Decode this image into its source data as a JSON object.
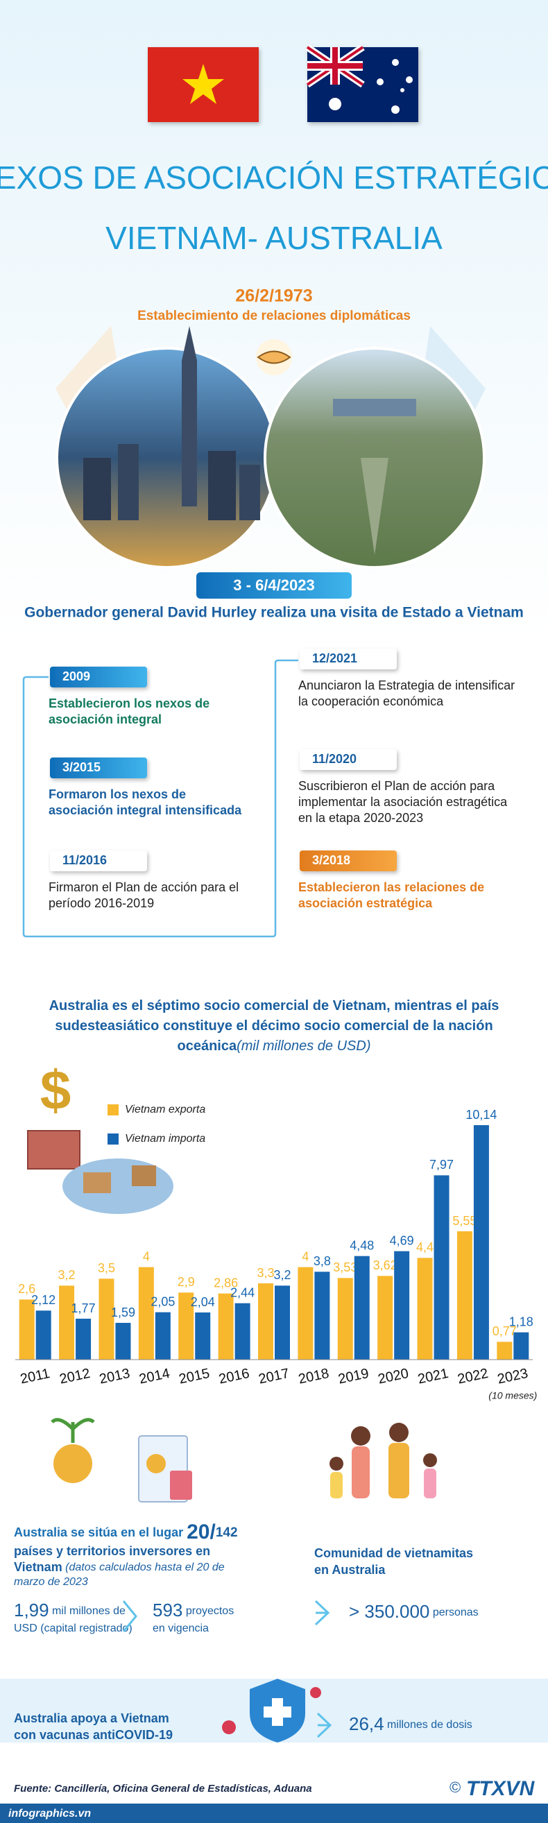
{
  "header": {
    "title_line1": "NEXOS DE ASOCIACIÓN ESTRATÉGICA",
    "title_line2": "VIETNAM- AUSTRALIA"
  },
  "diplomatic": {
    "date": "26/2/1973",
    "label": "Establecimiento de relaciones diplomáticas"
  },
  "visit": {
    "date": "3 - 6/4/2023",
    "label": "Gobernador general David Hurley realiza una visita de Estado a Vietnam"
  },
  "timeline": {
    "left": [
      {
        "date": "2009",
        "lines": [
          "Establecieron los nexos de",
          "asociación integral"
        ]
      },
      {
        "date": "3/2015",
        "lines": [
          "Formaron los nexos de",
          "asociación integral intensificada"
        ]
      },
      {
        "date": "11/2016",
        "lines": [
          "Firmaron el Plan de acción para el",
          "período 2016-2019"
        ]
      }
    ],
    "right": [
      {
        "date": "12/2021",
        "lines": [
          "Anunciaron la Estrategia de intensificar",
          "la cooperación económica"
        ]
      },
      {
        "date": "11/2020",
        "lines": [
          "Suscribieron el Plan de acción para",
          "implementar la asociación estragética",
          "en la etapa 2020-2023"
        ]
      },
      {
        "date": "3/2018",
        "lines": [
          "Establecieron las relaciones de",
          "asociación estratégica"
        ]
      }
    ]
  },
  "chart_data": {
    "type": "bar",
    "title_lines": [
      "Australia es el séptimo socio comercial de Vietnam, mientras el país",
      "sudesteasiático constituye el décimo socio  comercial de la nación",
      "oceánica"
    ],
    "unit": "(mil millones de  USD)",
    "categories": [
      "2011",
      "2012",
      "2013",
      "2014",
      "2015",
      "2016",
      "2017",
      "2018",
      "2019",
      "2020",
      "2021",
      "2022",
      "2023"
    ],
    "last_category_note": "(10 meses)",
    "ylim": [
      0,
      10.5
    ],
    "series": [
      {
        "name": "Vietnam exporta",
        "color": "#f8b82d",
        "values": [
          2.6,
          3.2,
          3.5,
          4,
          2.9,
          2.86,
          3.3,
          4,
          3.53,
          3.62,
          4.4,
          5.55,
          0.77
        ],
        "value_labels": [
          "2,6",
          "3,2",
          "3,5",
          "4",
          "2,9",
          "2,86",
          "3,3",
          "4",
          "3,53",
          "3,62",
          "4,4",
          "5,55",
          "0,77"
        ]
      },
      {
        "name": "Vietnam importa",
        "color": "#1766b2",
        "values": [
          2.12,
          1.77,
          1.59,
          2.05,
          2.04,
          2.44,
          3.2,
          3.8,
          4.48,
          4.69,
          7.97,
          10.14,
          1.18
        ],
        "value_labels": [
          "2,12",
          "1,77",
          "1,59",
          "2,05",
          "2,04",
          "2,44",
          "3,2",
          "3,8",
          "4,48",
          "4,69",
          "7,97",
          "10,14",
          "1,18"
        ]
      }
    ]
  },
  "investment": {
    "rank_prefix": "Australia",
    "rank_text": " se sitúa en el lugar ",
    "rank": "20/",
    "rank_total": "142",
    "rank_lines": [
      "países y territorios inversores en",
      "Vietnam"
    ],
    "rank_note": [
      " (datos calculados hasta el 20 de",
      "marzo de 2023"
    ],
    "capital": "1,99",
    "capital_unit": " mil millones de",
    "capital_line2": "USD (capital registrado)",
    "projects": "593",
    "projects_unit": " proyectos",
    "projects_line2": "en vigencia"
  },
  "community": {
    "lines": [
      "Comunidad de vietnamitas",
      "en Australia"
    ],
    "value": "> 350.000",
    "unit": " personas"
  },
  "vaccine": {
    "lines": [
      "Australia apoya a Vietnam",
      "con vacunas antiCOVID-19"
    ],
    "value": "26,4",
    "unit": " millones de dosis"
  },
  "footer": {
    "source": "Fuente: Cancillería, Oficina General de Estadísticas, Aduana",
    "site": "infographics.vn",
    "logo": "TTXVN",
    "copyright": "©"
  }
}
